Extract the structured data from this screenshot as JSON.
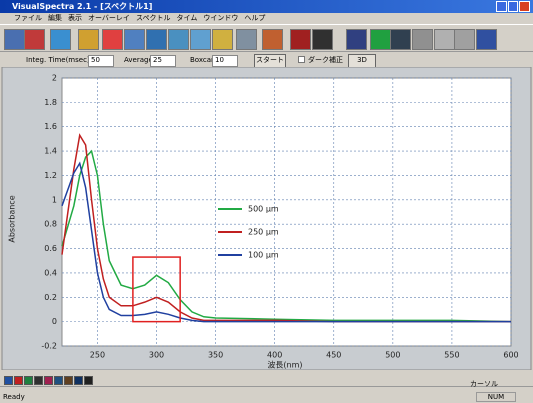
{
  "window": {
    "title": "VisualSpectra 2.1 - [スペクトル1]"
  },
  "menu": [
    "ファイル",
    "編集",
    "表示",
    "オーバーレイ",
    "スペクトル",
    "タイム",
    "ウインドウ",
    "ヘルプ"
  ],
  "controls": {
    "integ_label": "Integ. Time(msec)",
    "integ_value": 50,
    "average_label": "Average",
    "average_value": 25,
    "boxcar_label": "Boxcar",
    "boxcar_value": 10,
    "start_button": "スタート",
    "dark_checkbox": "ダーク補正",
    "button_3d": "3D"
  },
  "chart_data": {
    "type": "line",
    "x_label": "波長(nm)",
    "y_label": "Absorbance",
    "x": [
      220,
      230,
      235,
      240,
      245,
      250,
      255,
      260,
      270,
      280,
      290,
      300,
      310,
      320,
      330,
      340,
      350,
      400,
      450,
      500,
      550,
      600
    ],
    "series": [
      {
        "name": "500 µm",
        "color": "#22aa44",
        "values": [
          0.62,
          0.95,
          1.2,
          1.35,
          1.4,
          1.2,
          0.8,
          0.5,
          0.3,
          0.27,
          0.3,
          0.38,
          0.32,
          0.18,
          0.08,
          0.04,
          0.03,
          0.02,
          0.01,
          0.01,
          0.01,
          0
        ]
      },
      {
        "name": "250 µm",
        "color": "#c02020",
        "values": [
          0.55,
          1.25,
          1.53,
          1.45,
          1.0,
          0.6,
          0.35,
          0.2,
          0.13,
          0.13,
          0.16,
          0.2,
          0.16,
          0.08,
          0.03,
          0.01,
          0.01,
          0.01,
          0,
          0,
          0,
          0
        ]
      },
      {
        "name": "100 µm",
        "color": "#2040a0",
        "values": [
          0.95,
          1.22,
          1.3,
          1.1,
          0.75,
          0.4,
          0.2,
          0.1,
          0.05,
          0.05,
          0.06,
          0.08,
          0.06,
          0.03,
          0.01,
          0,
          0,
          0,
          0,
          0,
          0,
          0
        ]
      }
    ],
    "xlim": [
      220,
      600
    ],
    "xticks": [
      250,
      300,
      350,
      400,
      450,
      500,
      550,
      600
    ],
    "ylim": [
      -0.2,
      2
    ],
    "yticks": [
      -0.2,
      0,
      0.2,
      0.4,
      0.6,
      0.8,
      1,
      1.2,
      1.4,
      1.6,
      1.8,
      2
    ],
    "grid": true,
    "legend": "center",
    "highlight": {
      "xlim": [
        280,
        320
      ],
      "ylim": [
        0,
        0.53
      ],
      "color": "#e02020"
    }
  },
  "status": {
    "left": "Ready",
    "cursor": "カーソル",
    "num": "NUM"
  }
}
